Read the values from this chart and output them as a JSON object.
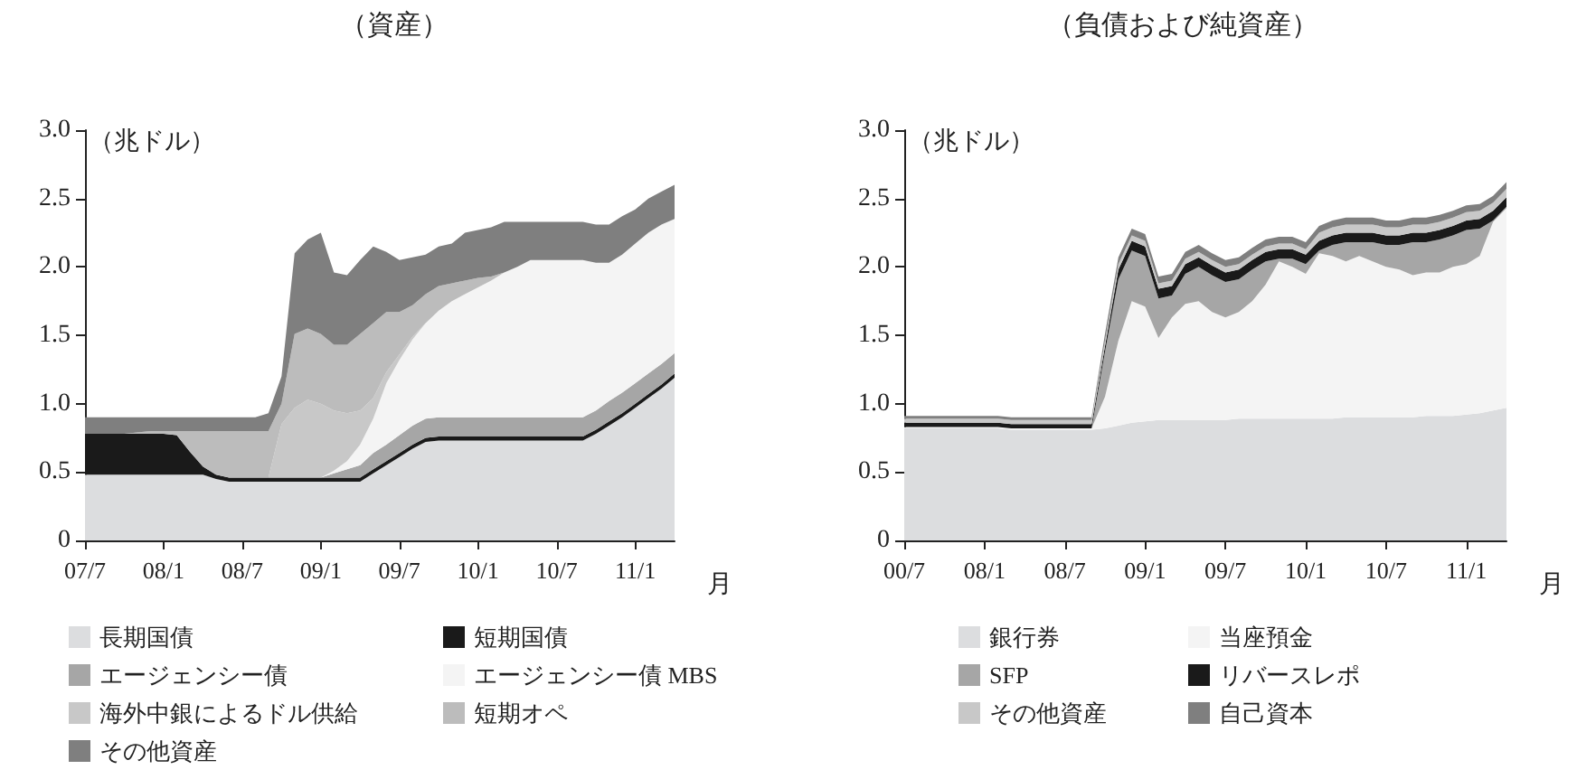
{
  "chart_data": [
    {
      "type": "area",
      "stacked": true,
      "title": "（資産）",
      "ylabel": "（兆ドル）",
      "xlabel": "月",
      "grid": false,
      "legend": "bottom",
      "ylim": [
        0,
        3
      ],
      "yticks": [
        0,
        0.5,
        {
          "value": 1,
          "label": "1.0"
        },
        1.5,
        {
          "value": 2,
          "label": "2.0"
        },
        2.5,
        {
          "value": 3,
          "label": "3.0"
        }
      ],
      "categories": [
        "07/7",
        null,
        null,
        null,
        null,
        null,
        "08/1",
        null,
        null,
        null,
        null,
        null,
        "08/7",
        null,
        null,
        null,
        null,
        null,
        "09/1",
        null,
        null,
        null,
        null,
        null,
        "09/7",
        null,
        null,
        null,
        null,
        null,
        "10/1",
        null,
        null,
        null,
        null,
        null,
        "10/7",
        null,
        null,
        null,
        null,
        null,
        "11/1",
        null,
        null,
        null
      ],
      "series": [
        {
          "name": "長期国債",
          "color": "#dcdddf",
          "values": [
            0.48,
            0.48,
            0.48,
            0.48,
            0.48,
            0.48,
            0.48,
            0.48,
            0.48,
            0.48,
            0.45,
            0.43,
            0.43,
            0.43,
            0.43,
            0.43,
            0.43,
            0.43,
            0.43,
            0.43,
            0.43,
            0.43,
            0.49,
            0.55,
            0.61,
            0.67,
            0.72,
            0.73,
            0.73,
            0.73,
            0.73,
            0.73,
            0.73,
            0.73,
            0.73,
            0.73,
            0.73,
            0.73,
            0.73,
            0.78,
            0.84,
            0.9,
            0.97,
            1.04,
            1.11,
            1.19
          ]
        },
        {
          "name": "短期国債",
          "color": "#1a1a1a",
          "values": [
            0.3,
            0.3,
            0.3,
            0.3,
            0.3,
            0.3,
            0.3,
            0.29,
            0.17,
            0.06,
            0.03,
            0.03,
            0.03,
            0.03,
            0.03,
            0.03,
            0.03,
            0.03,
            0.03,
            0.03,
            0.03,
            0.03,
            0.03,
            0.03,
            0.03,
            0.03,
            0.03,
            0.03,
            0.03,
            0.03,
            0.03,
            0.03,
            0.03,
            0.03,
            0.03,
            0.03,
            0.03,
            0.03,
            0.03,
            0.03,
            0.03,
            0.03,
            0.03,
            0.03,
            0.03,
            0.03
          ]
        },
        {
          "name": "エージェンシー債",
          "color": "#a6a6a6",
          "values": [
            null,
            null,
            null,
            null,
            null,
            null,
            null,
            null,
            null,
            null,
            null,
            null,
            null,
            null,
            null,
            null,
            null,
            null,
            0,
            0.03,
            0.06,
            0.09,
            0.12,
            0.12,
            0.13,
            0.14,
            0.14,
            0.14,
            0.14,
            0.14,
            0.14,
            0.14,
            0.14,
            0.14,
            0.14,
            0.14,
            0.14,
            0.14,
            0.14,
            0.14,
            0.15,
            0.15,
            0.15,
            0.15,
            0.15,
            0.15
          ]
        },
        {
          "name": "エージェンシー債 MBS",
          "color": "#f4f4f4",
          "values": [
            null,
            null,
            null,
            null,
            null,
            null,
            null,
            null,
            null,
            null,
            null,
            null,
            null,
            null,
            null,
            null,
            null,
            null,
            0,
            0.02,
            0.06,
            0.15,
            0.25,
            0.45,
            0.55,
            0.63,
            0.7,
            0.78,
            0.85,
            0.9,
            0.95,
            1.0,
            1.06,
            1.1,
            1.15,
            1.15,
            1.15,
            1.15,
            1.15,
            1.08,
            1.01,
            1.01,
            1.02,
            1.03,
            1.02,
            0.98
          ]
        },
        {
          "name": "海外中銀によるドル供給",
          "color": "#c8c8c8",
          "values": [
            null,
            null,
            null,
            null,
            null,
            null,
            null,
            null,
            null,
            null,
            null,
            null,
            null,
            null,
            0,
            0.39,
            0.51,
            0.57,
            0.54,
            0.44,
            0.35,
            0.25,
            0.15,
            0.08,
            0.04,
            0.02,
            0,
            null,
            null,
            null,
            null,
            null,
            null,
            null,
            null,
            null,
            null,
            null,
            null,
            null,
            null,
            null,
            null,
            null,
            null,
            null
          ]
        },
        {
          "name": "短期オペ",
          "color": "#bcbcbc",
          "values": [
            null,
            null,
            null,
            0,
            0.01,
            0.02,
            0.02,
            0.03,
            0.15,
            0.26,
            0.32,
            0.34,
            0.34,
            0.34,
            0.34,
            0.15,
            0.54,
            0.52,
            0.51,
            0.48,
            0.5,
            0.56,
            0.55,
            0.44,
            0.31,
            0.23,
            0.21,
            0.18,
            0.13,
            0.1,
            0.07,
            0.03,
            0,
            null,
            null,
            null,
            null,
            null,
            null,
            null,
            null,
            null,
            null,
            null,
            null,
            null
          ]
        },
        {
          "name": "その他資産",
          "color": "#7f7f7f",
          "values": [
            0.12,
            0.12,
            0.12,
            0.12,
            0.11,
            0.1,
            0.1,
            0.1,
            0.1,
            0.1,
            0.1,
            0.1,
            0.1,
            0.1,
            0.13,
            0.2,
            0.59,
            0.65,
            0.74,
            0.53,
            0.51,
            0.54,
            0.56,
            0.44,
            0.38,
            0.35,
            0.29,
            0.29,
            0.29,
            0.35,
            0.35,
            0.36,
            0.37,
            0.33,
            0.28,
            0.28,
            0.28,
            0.28,
            0.28,
            0.28,
            0.28,
            0.28,
            0.25,
            0.25,
            0.24,
            0.25
          ]
        }
      ]
    },
    {
      "type": "area",
      "stacked": true,
      "title": "（負債および純資産）",
      "ylabel": "（兆ドル）",
      "xlabel": "月",
      "grid": false,
      "legend": "bottom",
      "ylim": [
        0,
        3
      ],
      "yticks": [
        0,
        0.5,
        {
          "value": 1,
          "label": "1.0"
        },
        1.5,
        {
          "value": 2,
          "label": "2.0"
        },
        2.5,
        {
          "value": 3,
          "label": "3.0"
        }
      ],
      "categories": [
        "00/7",
        null,
        null,
        null,
        null,
        null,
        "08/1",
        null,
        null,
        null,
        null,
        null,
        "08/7",
        null,
        null,
        null,
        null,
        null,
        "09/1",
        null,
        null,
        null,
        null,
        null,
        "09/7",
        null,
        null,
        null,
        null,
        null,
        "10/1",
        null,
        null,
        null,
        null,
        null,
        "10/7",
        null,
        null,
        null,
        null,
        null,
        "11/1",
        null,
        null,
        null
      ],
      "series": [
        {
          "name": "銀行券",
          "color": "#dcdddf",
          "values": [
            0.82,
            0.82,
            0.82,
            0.82,
            0.82,
            0.82,
            0.82,
            0.82,
            0.81,
            0.81,
            0.81,
            0.81,
            0.81,
            0.81,
            0.81,
            0.82,
            0.84,
            0.86,
            0.87,
            0.88,
            0.88,
            0.88,
            0.88,
            0.88,
            0.88,
            0.89,
            0.89,
            0.89,
            0.89,
            0.89,
            0.89,
            0.89,
            0.89,
            0.9,
            0.9,
            0.9,
            0.9,
            0.9,
            0.9,
            0.91,
            0.91,
            0.91,
            0.92,
            0.93,
            0.95,
            0.97
          ]
        },
        {
          "name": "当座預金",
          "color": "#f4f4f4",
          "values": [
            0.01,
            0.01,
            0.01,
            0.01,
            0.01,
            0.01,
            0.01,
            0.01,
            0.01,
            0.01,
            0.01,
            0.01,
            0.01,
            0.01,
            0.01,
            0.23,
            0.62,
            0.89,
            0.84,
            0.6,
            0.75,
            0.85,
            0.87,
            0.79,
            0.75,
            0.78,
            0.86,
            0.98,
            1.15,
            1.11,
            1.06,
            1.21,
            1.19,
            1.14,
            1.18,
            1.14,
            1.1,
            1.08,
            1.04,
            1.05,
            1.05,
            1.09,
            1.1,
            1.15,
            1.38,
            1.46
          ]
        },
        {
          "name": "SFP",
          "color": "#a6a6a6",
          "values": [
            null,
            null,
            null,
            null,
            null,
            null,
            null,
            null,
            null,
            null,
            null,
            null,
            null,
            null,
            0,
            0.33,
            0.45,
            0.37,
            0.37,
            0.29,
            0.16,
            0.22,
            0.25,
            0.27,
            0.26,
            0.24,
            0.23,
            0.17,
            0.02,
            0.06,
            0.07,
            0.02,
            0.08,
            0.14,
            0.1,
            0.14,
            0.16,
            0.18,
            0.24,
            0.22,
            0.24,
            0.23,
            0.25,
            0.2,
            0.01,
            0.01
          ]
        },
        {
          "name": "リバースレポ",
          "color": "#1a1a1a",
          "values": [
            0.03,
            0.03,
            0.03,
            0.03,
            0.03,
            0.03,
            0.03,
            0.03,
            0.03,
            0.03,
            0.03,
            0.03,
            0.03,
            0.03,
            0.03,
            0.04,
            0.07,
            0.07,
            0.07,
            0.07,
            0.07,
            0.07,
            0.07,
            0.07,
            0.07,
            0.07,
            0.07,
            0.07,
            0.07,
            0.07,
            0.07,
            0.07,
            0.07,
            0.07,
            0.07,
            0.07,
            0.07,
            0.07,
            0.07,
            0.07,
            0.07,
            0.07,
            0.07,
            0.07,
            0.07,
            0.07
          ]
        },
        {
          "name": "その他資産",
          "color": "#c8c8c8",
          "values": [
            0.03,
            0.03,
            0.03,
            0.03,
            0.03,
            0.03,
            0.03,
            0.03,
            0.03,
            0.03,
            0.03,
            0.03,
            0.03,
            0.03,
            0.03,
            0.04,
            0.04,
            0.04,
            0.04,
            0.04,
            0.04,
            0.04,
            0.04,
            0.04,
            0.04,
            0.04,
            0.04,
            0.04,
            0.04,
            0.04,
            0.04,
            0.06,
            0.06,
            0.06,
            0.06,
            0.06,
            0.06,
            0.06,
            0.06,
            0.06,
            0.06,
            0.06,
            0.06,
            0.06,
            0.06,
            0.06
          ]
        },
        {
          "name": "自己資本",
          "color": "#7f7f7f",
          "values": [
            0.02,
            0.02,
            0.02,
            0.02,
            0.02,
            0.02,
            0.02,
            0.02,
            0.02,
            0.02,
            0.02,
            0.02,
            0.02,
            0.02,
            0.02,
            0.05,
            0.05,
            0.05,
            0.05,
            0.05,
            0.05,
            0.05,
            0.05,
            0.05,
            0.05,
            0.05,
            0.05,
            0.05,
            0.05,
            0.05,
            0.05,
            0.05,
            0.05,
            0.05,
            0.05,
            0.05,
            0.05,
            0.05,
            0.05,
            0.05,
            0.05,
            0.05,
            0.05,
            0.05,
            0.05,
            0.05
          ]
        }
      ]
    }
  ]
}
